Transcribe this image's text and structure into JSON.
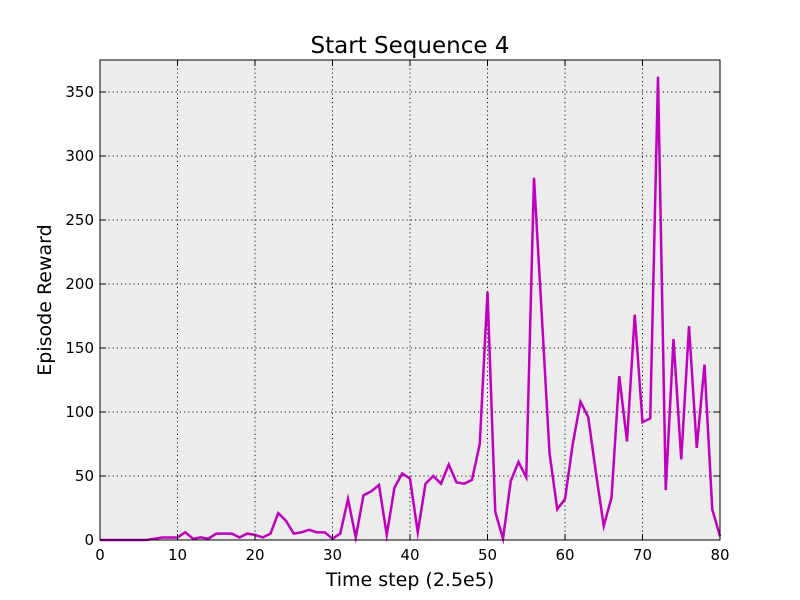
{
  "chart_data": {
    "type": "line",
    "title": "Start Sequence 4",
    "xlabel": "Time step (2.5e5)",
    "ylabel": "Episode Reward",
    "xlim": [
      0,
      80
    ],
    "ylim": [
      0,
      375
    ],
    "xticks": [
      0,
      10,
      20,
      30,
      40,
      50,
      60,
      70,
      80
    ],
    "yticks": [
      0,
      50,
      100,
      150,
      200,
      250,
      300,
      350
    ],
    "grid": true,
    "background_color": "#ececec",
    "series": [
      {
        "color": "#bf00bf",
        "x": [
          0,
          1,
          2,
          3,
          4,
          5,
          6,
          7,
          8,
          9,
          10,
          11,
          12,
          13,
          14,
          15,
          16,
          17,
          18,
          19,
          20,
          21,
          22,
          23,
          24,
          25,
          26,
          27,
          28,
          29,
          30,
          31,
          32,
          33,
          34,
          35,
          36,
          37,
          38,
          39,
          40,
          41,
          42,
          43,
          44,
          45,
          46,
          47,
          48,
          49,
          50,
          51,
          52,
          53,
          54,
          55,
          56,
          57,
          58,
          59,
          60,
          61,
          62,
          63,
          64,
          65,
          66,
          67,
          68,
          69,
          70,
          71,
          72,
          73,
          74,
          75,
          76,
          77,
          78,
          79,
          80
        ],
        "y": [
          0,
          0,
          0,
          0,
          0,
          0,
          0,
          1,
          2,
          2,
          2,
          6,
          1,
          2,
          1,
          5,
          5,
          5,
          2,
          5,
          4,
          2,
          5,
          21,
          15,
          5,
          6,
          8,
          6,
          6,
          1,
          5,
          32,
          2,
          35,
          38,
          43,
          4,
          41,
          52,
          48,
          6,
          44,
          50,
          44,
          59,
          45,
          44,
          47,
          75,
          194,
          22,
          1,
          46,
          61,
          49,
          283,
          176,
          68,
          24,
          32,
          75,
          108,
          96,
          52,
          11,
          33,
          128,
          77,
          176,
          92,
          95,
          362,
          39,
          157,
          63,
          167,
          72,
          137,
          24,
          3
        ]
      }
    ]
  }
}
